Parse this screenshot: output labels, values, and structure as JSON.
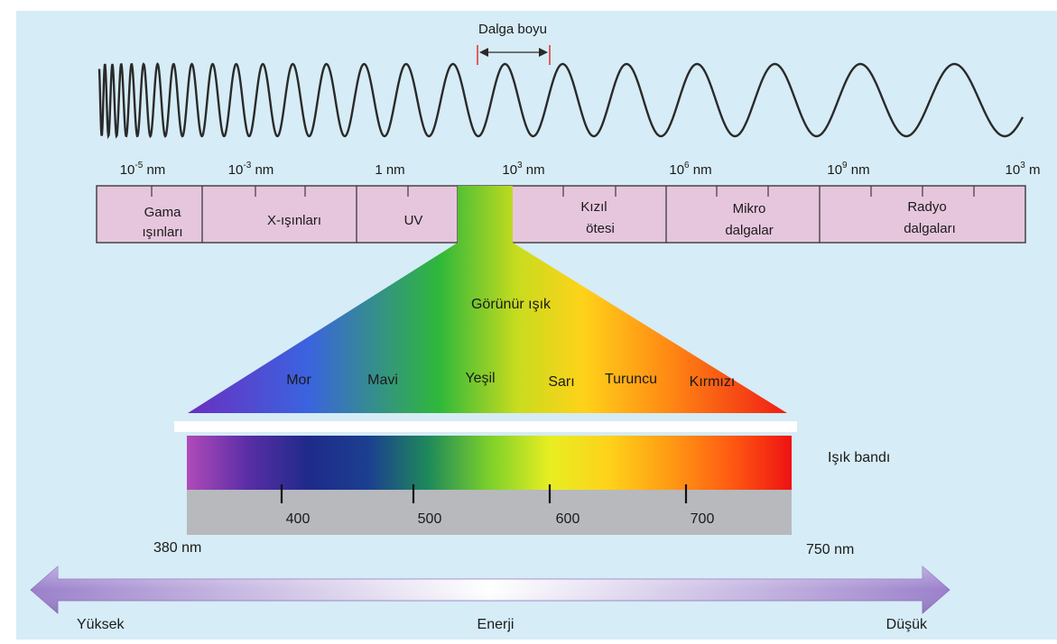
{
  "wave": {
    "label": "Dalga boyu"
  },
  "scale": {
    "ticks": [
      {
        "base": "10",
        "exp": "-5",
        "unit": "nm"
      },
      {
        "base": "10",
        "exp": "-3",
        "unit": "nm"
      },
      {
        "base": "1",
        "exp": "",
        "unit": "nm"
      },
      {
        "base": "10",
        "exp": "3",
        "unit": "nm"
      },
      {
        "base": "10",
        "exp": "6",
        "unit": "nm"
      },
      {
        "base": "10",
        "exp": "9",
        "unit": "nm"
      },
      {
        "base": "10",
        "exp": "3",
        "unit": "m"
      }
    ]
  },
  "bands": [
    {
      "line1": "Gama",
      "line2": "ışınları"
    },
    {
      "line1": "X-ışınları",
      "line2": ""
    },
    {
      "line1": "UV",
      "line2": ""
    },
    {
      "line1": "Kızıl",
      "line2": "ötesi"
    },
    {
      "line1": "Mikro",
      "line2": "dalgalar"
    },
    {
      "line1": "Radyo",
      "line2": "dalgaları"
    }
  ],
  "visible": {
    "title": "Görünür ışık",
    "colors": [
      "Mor",
      "Mavi",
      "Yeşil",
      "Sarı",
      "Turuncu",
      "Kırmızı"
    ]
  },
  "light_band": {
    "label": "Işık bandı",
    "ticks": [
      "400",
      "500",
      "600",
      "700"
    ],
    "min_label": "380 nm",
    "max_label": "750 nm"
  },
  "energy": {
    "label": "Enerji",
    "high": "Yüksek",
    "low": "Düşük"
  },
  "colors": {
    "background": "#d6ecf6",
    "band_fill": "#e6c6dd",
    "ruler_gray": "#b7b9bd",
    "arrow_purple": "#a98fd3"
  }
}
